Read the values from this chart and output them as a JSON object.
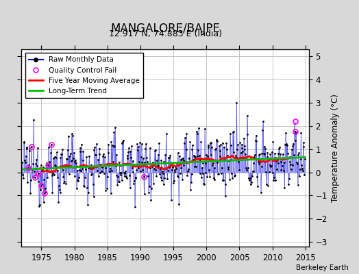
{
  "title": "MANGALORE/BAJPE",
  "subtitle": "12.917 N, 74.883 E (India)",
  "attribution": "Berkeley Earth",
  "ylabel": "Temperature Anomaly (°C)",
  "xlim": [
    1972.0,
    2015.5
  ],
  "ylim": [
    -3.2,
    5.3
  ],
  "yticks": [
    -3,
    -2,
    -1,
    0,
    1,
    2,
    3,
    4,
    5
  ],
  "xticks": [
    1975,
    1980,
    1985,
    1990,
    1995,
    2000,
    2005,
    2010,
    2015
  ],
  "background_color": "#d8d8d8",
  "plot_bg_color": "#ffffff",
  "grid_color": "#bbbbbb",
  "stem_color": "#7777ff",
  "dot_color": "#000000",
  "line_color": "#0000cc",
  "ma_color": "#ff0000",
  "trend_color": "#00bb00",
  "qc_color": "#ff00ff",
  "seed": 12345
}
